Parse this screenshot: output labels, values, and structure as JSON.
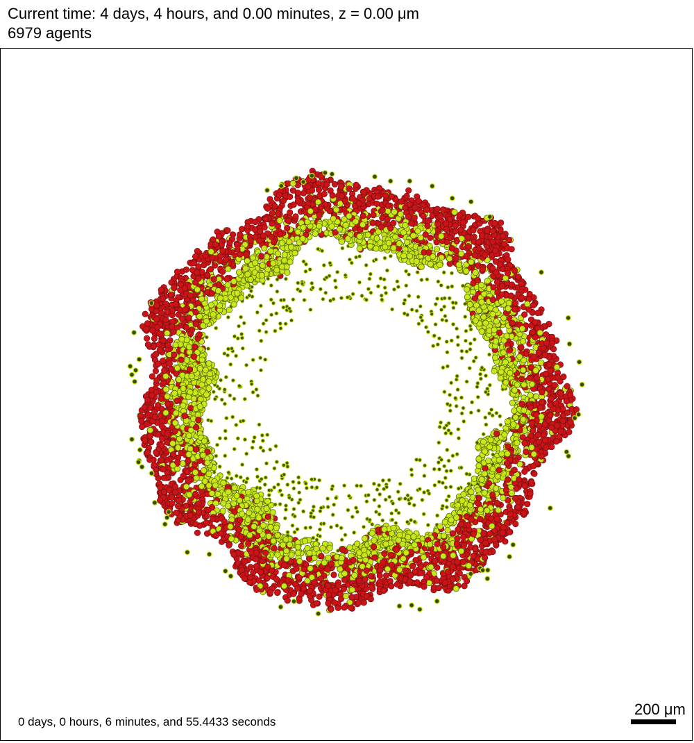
{
  "header": {
    "time_line": "Current time: 4 days, 4 hours, and 0.00 minutes, z = 0.00 μm",
    "agents_line": "6979 agents"
  },
  "footer": {
    "elapsed": "0 days, 0 hours, 6 minutes, and 55.4433 seconds"
  },
  "scalebar": {
    "label": "200 μm"
  },
  "colors": {
    "background": "#ffffff",
    "cell_dead_red": "#cc1418",
    "cell_live_yellow": "#c8e81a",
    "cell_outline": "#3a2a00",
    "cell_core": "#2a3a00"
  }
}
